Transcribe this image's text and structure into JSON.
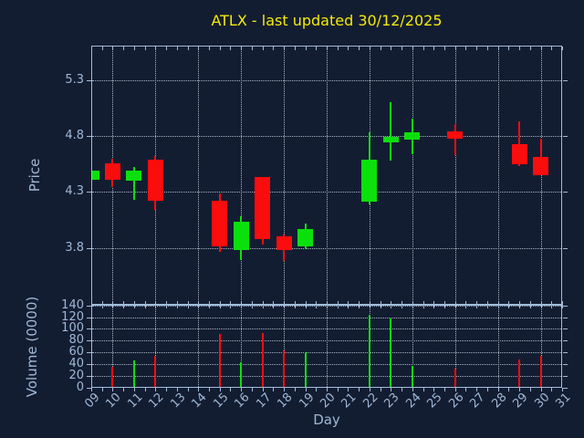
{
  "title": "ATLX - last updated 30/12/2025",
  "colors": {
    "background": "#131d32",
    "frame": "#a0bcd9",
    "tick_label": "#9fb8d5",
    "grid": "#aab4c1",
    "title": "#f5ea07",
    "up": "#0ce00c",
    "down": "#fa0d0d"
  },
  "chart_data": {
    "type": "candlestick+volume-bar",
    "title": "ATLX - last updated 30/12/2025",
    "x_axis": {
      "label": "Day",
      "tick_labels": [
        "09",
        "10",
        "11",
        "12",
        "13",
        "14",
        "15",
        "16",
        "17",
        "18",
        "19",
        "20",
        "21",
        "22",
        "23",
        "24",
        "25",
        "26",
        "27",
        "28",
        "29",
        "30",
        "31"
      ],
      "first_day": 9,
      "last_day": 31,
      "gridline_days": [
        10,
        12,
        14,
        16,
        18,
        20,
        22,
        24,
        26,
        28,
        30
      ],
      "minor_tick_step": 0.5
    },
    "price_axis": {
      "label": "Price",
      "tick_labels": [
        "5.3",
        "4.8",
        "4.3",
        "3.8"
      ],
      "ticks": [
        5.3,
        4.8,
        4.3,
        3.8
      ],
      "ylim": [
        3.29,
        5.61
      ],
      "grid": "dotted"
    },
    "volume_axis": {
      "label": "Volume (0000)",
      "tick_labels": [
        "140",
        "120",
        "100",
        "80",
        "60",
        "40",
        "20",
        "0"
      ],
      "ticks": [
        140,
        120,
        100,
        80,
        60,
        40,
        20,
        0
      ],
      "ylim": [
        0,
        141
      ],
      "grid": "dotted"
    },
    "candles": [
      {
        "day": 9,
        "open": 4.41,
        "high": 4.49,
        "low": 4.41,
        "close": 4.49,
        "volume": 0
      },
      {
        "day": 10,
        "open": 4.56,
        "high": 4.6,
        "low": 4.34,
        "close": 4.41,
        "volume": 35
      },
      {
        "day": 11,
        "open": 4.4,
        "high": 4.52,
        "low": 4.23,
        "close": 4.49,
        "volume": 47
      },
      {
        "day": 12,
        "open": 4.59,
        "high": 4.62,
        "low": 4.14,
        "close": 4.22,
        "volume": 55
      },
      {
        "day": 15,
        "open": 4.22,
        "high": 4.29,
        "low": 3.76,
        "close": 3.81,
        "volume": 92
      },
      {
        "day": 16,
        "open": 3.78,
        "high": 4.08,
        "low": 3.69,
        "close": 4.03,
        "volume": 44
      },
      {
        "day": 17,
        "open": 4.43,
        "high": 4.43,
        "low": 3.83,
        "close": 3.88,
        "volume": 93
      },
      {
        "day": 18,
        "open": 3.9,
        "high": 3.92,
        "low": 3.68,
        "close": 3.78,
        "volume": 64
      },
      {
        "day": 19,
        "open": 3.81,
        "high": 4.02,
        "low": 3.79,
        "close": 3.97,
        "volume": 60
      },
      {
        "day": 22,
        "open": 4.21,
        "high": 4.83,
        "low": 4.19,
        "close": 4.59,
        "volume": 124
      },
      {
        "day": 23,
        "open": 4.74,
        "high": 5.1,
        "low": 4.58,
        "close": 4.79,
        "volume": 118
      },
      {
        "day": 24,
        "open": 4.77,
        "high": 4.96,
        "low": 4.64,
        "close": 4.83,
        "volume": 37
      },
      {
        "day": 26,
        "open": 4.84,
        "high": 4.91,
        "low": 4.63,
        "close": 4.78,
        "volume": 32
      },
      {
        "day": 29,
        "open": 4.73,
        "high": 4.93,
        "low": 4.53,
        "close": 4.55,
        "volume": 48
      },
      {
        "day": 30,
        "open": 4.61,
        "high": 4.78,
        "low": 4.45,
        "close": 4.45,
        "volume": 55
      }
    ]
  }
}
